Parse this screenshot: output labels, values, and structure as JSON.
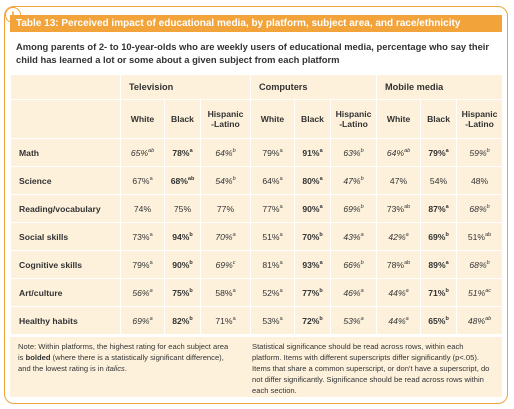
{
  "icon": "!",
  "title": "Table 13: Perceived impact of educational media, by platform, subject area, and race/ethnicity",
  "subtitle": "Among parents of 2- to 10-year-olds who are weekly users of educational media, percentage who say their child has learned a lot or some about a given subject from each platform",
  "table": {
    "platforms": [
      "Television",
      "Computers",
      "Mobile media"
    ],
    "groups": [
      "White",
      "Black",
      "Hispanic\n-Latino"
    ],
    "rows": [
      {
        "label": "Math",
        "cells": [
          {
            "text": "65%",
            "sup": "ab",
            "style": "italic"
          },
          {
            "text": "78%",
            "sup": "a",
            "style": "bold"
          },
          {
            "text": "64%",
            "sup": "b",
            "style": "italic"
          },
          {
            "text": "79%",
            "sup": "a"
          },
          {
            "text": "91%",
            "sup": "a",
            "style": "bold"
          },
          {
            "text": "63%",
            "sup": "b",
            "style": "italic"
          },
          {
            "text": "64%",
            "sup": "ab",
            "style": "italic"
          },
          {
            "text": "79%",
            "sup": "a",
            "style": "bold"
          },
          {
            "text": "59%",
            "sup": "b",
            "style": "italic"
          }
        ]
      },
      {
        "label": "Science",
        "cells": [
          {
            "text": "67%",
            "sup": "a"
          },
          {
            "text": "68%",
            "sup": "ab",
            "style": "bold"
          },
          {
            "text": "54%",
            "sup": "b",
            "style": "italic"
          },
          {
            "text": "64%",
            "sup": "a"
          },
          {
            "text": "80%",
            "sup": "a",
            "style": "bold"
          },
          {
            "text": "47%",
            "sup": "b",
            "style": "italic"
          },
          {
            "text": "47%"
          },
          {
            "text": "54%"
          },
          {
            "text": "48%"
          }
        ]
      },
      {
        "label": "Reading/vocabulary",
        "cells": [
          {
            "text": "74%"
          },
          {
            "text": "75%"
          },
          {
            "text": "77%"
          },
          {
            "text": "77%",
            "sup": "a"
          },
          {
            "text": "90%",
            "sup": "a",
            "style": "bold"
          },
          {
            "text": "69%",
            "sup": "b",
            "style": "italic"
          },
          {
            "text": "73%",
            "sup": "ab"
          },
          {
            "text": "87%",
            "sup": "a",
            "style": "bold"
          },
          {
            "text": "68%",
            "sup": "b",
            "style": "italic"
          }
        ]
      },
      {
        "label": "Social skills",
        "cells": [
          {
            "text": "73%",
            "sup": "a"
          },
          {
            "text": "94%",
            "sup": "b",
            "style": "bold"
          },
          {
            "text": "70%",
            "sup": "a",
            "style": "italic"
          },
          {
            "text": "51%",
            "sup": "a"
          },
          {
            "text": "70%",
            "sup": "b",
            "style": "bold"
          },
          {
            "text": "43%",
            "sup": "a",
            "style": "italic"
          },
          {
            "text": "42%",
            "sup": "a",
            "style": "italic"
          },
          {
            "text": "69%",
            "sup": "b",
            "style": "bold"
          },
          {
            "text": "51%",
            "sup": "ab"
          }
        ]
      },
      {
        "label": "Cognitive skills",
        "cells": [
          {
            "text": "79%",
            "sup": "a"
          },
          {
            "text": "90%",
            "sup": "b",
            "style": "bold"
          },
          {
            "text": "69%",
            "sup": "c",
            "style": "italic"
          },
          {
            "text": "81%",
            "sup": "a"
          },
          {
            "text": "93%",
            "sup": "a",
            "style": "bold"
          },
          {
            "text": "66%",
            "sup": "b",
            "style": "italic"
          },
          {
            "text": "78%",
            "sup": "ab"
          },
          {
            "text": "89%",
            "sup": "a",
            "style": "bold"
          },
          {
            "text": "68%",
            "sup": "b",
            "style": "italic"
          }
        ]
      },
      {
        "label": "Art/culture",
        "cells": [
          {
            "text": "56%",
            "sup": "a",
            "style": "italic"
          },
          {
            "text": "75%",
            "sup": "b",
            "style": "bold"
          },
          {
            "text": "58%",
            "sup": "a"
          },
          {
            "text": "52%",
            "sup": "a"
          },
          {
            "text": "77%",
            "sup": "b",
            "style": "bold"
          },
          {
            "text": "46%",
            "sup": "a",
            "style": "italic"
          },
          {
            "text": "44%",
            "sup": "a",
            "style": "italic"
          },
          {
            "text": "71%",
            "sup": "b",
            "style": "bold"
          },
          {
            "text": "51%",
            "sup": "ac",
            "style": "italic"
          }
        ]
      },
      {
        "label": "Healthy habits",
        "cells": [
          {
            "text": "69%",
            "sup": "a",
            "style": "italic"
          },
          {
            "text": "82%",
            "sup": "b",
            "style": "bold"
          },
          {
            "text": "71%",
            "sup": "a"
          },
          {
            "text": "53%",
            "sup": "a"
          },
          {
            "text": "72%",
            "sup": "b",
            "style": "bold"
          },
          {
            "text": "53%",
            "sup": "a",
            "style": "italic"
          },
          {
            "text": "44%",
            "sup": "a",
            "style": "italic"
          },
          {
            "text": "65%",
            "sup": "b",
            "style": "bold"
          },
          {
            "text": "48%",
            "sup": "ab",
            "style": "italic"
          }
        ]
      }
    ]
  },
  "notes": {
    "left": [
      "Note: Within platforms, the highest rating for each subject area is ",
      "bolded",
      " (where there is a statistically significant difference), and the lowest rating is in ",
      "italics",
      "."
    ],
    "right": "Statistical significance should be read across rows, within each platform. Items with different superscripts differ significantly (p<.05). Items that share a common superscript, or don't have a superscript, do not differ significantly. Significance should be read across rows within each section."
  }
}
